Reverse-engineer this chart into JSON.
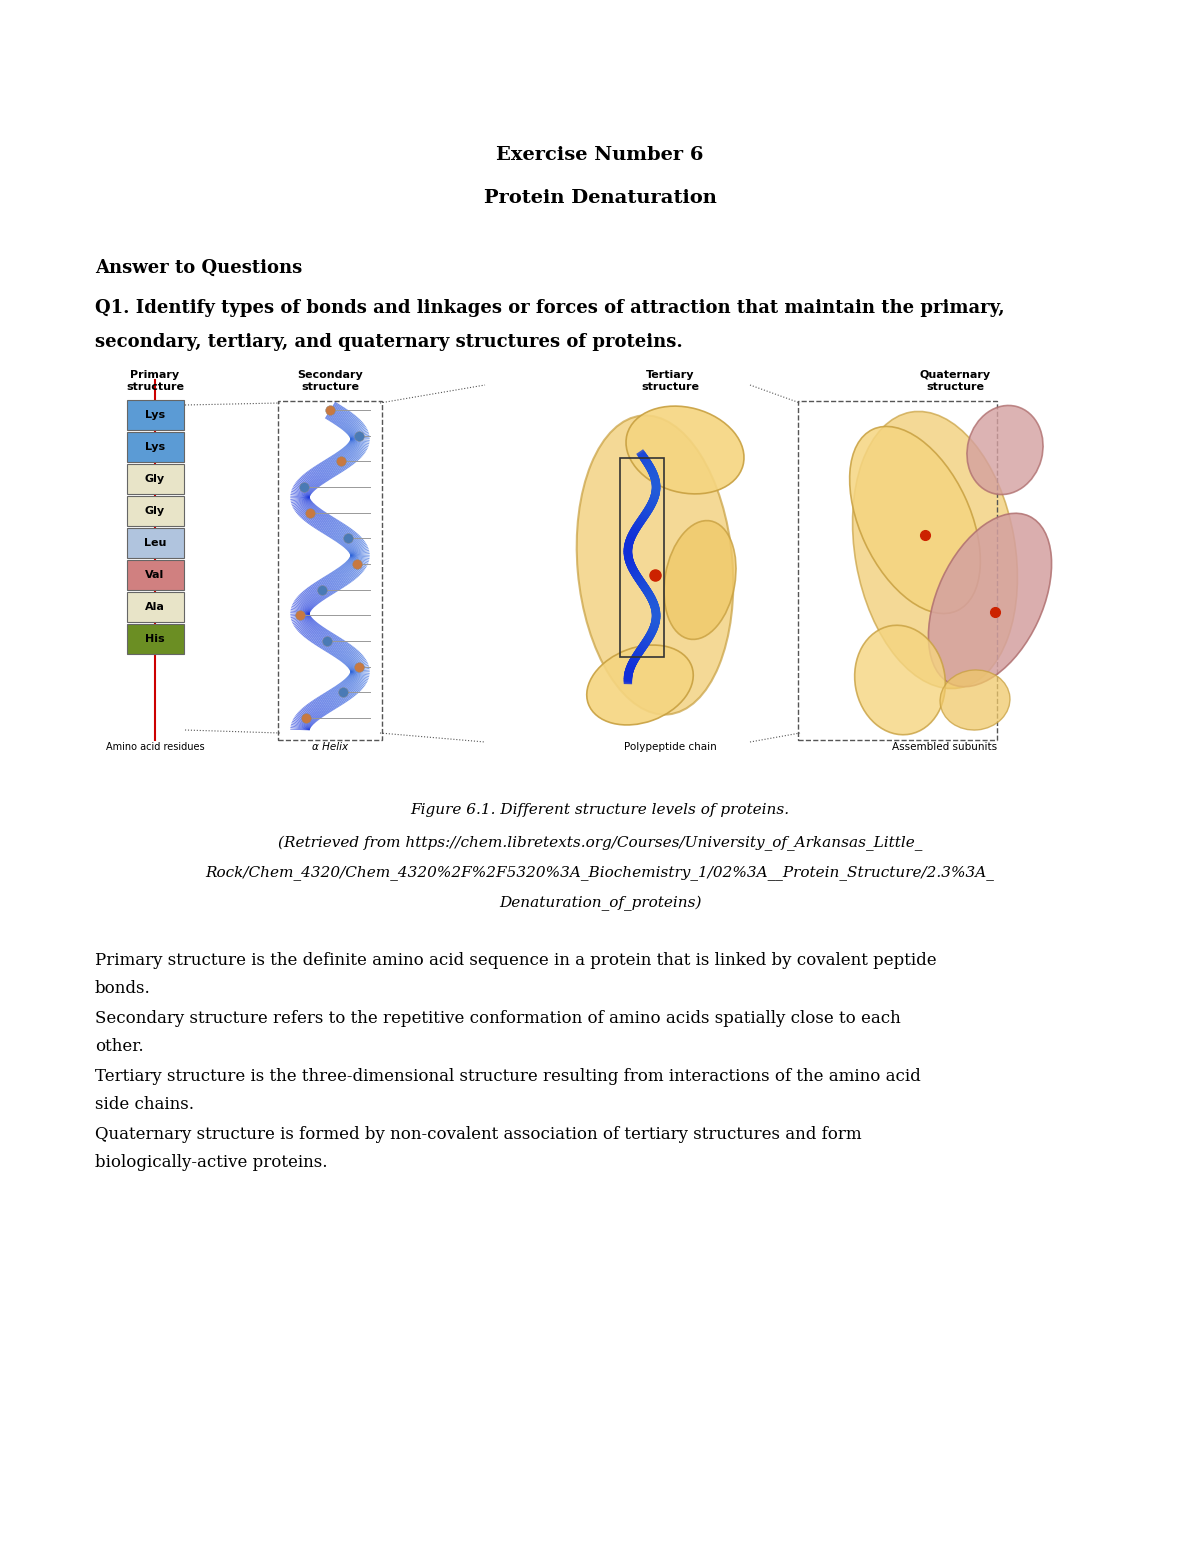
{
  "background_color": "#ffffff",
  "title_line1": "Exercise Number 6",
  "title_line2": "Protein Denaturation",
  "title_fontsize": 14,
  "section_header": "Answer to Questions",
  "section_header_fontsize": 13,
  "q1_line1": "Q1. Identify types of bonds and linkages or forces of attraction that maintain the primary,",
  "q1_line2": "secondary, tertiary, and quaternary structures of proteins.",
  "q1_fontsize": 13,
  "fig_cap1": "Figure 6.1. Different structure levels of proteins.",
  "fig_cap2": "(Retrieved from https://chem.libretexts.org/Courses/University_of_Arkansas_Little_",
  "fig_cap3": "Rock/Chem_4320/Chem_4320%2F%2F5320%3A_Biochemistry_1/02%3A__Protein_Structure/2.3%3A_",
  "fig_cap4": "Denaturation_of_proteins)",
  "caption_fontsize": 11,
  "body_fontsize": 12,
  "body_lines": [
    [
      "Primary structure is the definite amino acid sequence in a protein that is linked by covalent peptide",
      "bonds."
    ],
    [
      "Secondary structure refers to the repetitive conformation of amino acids spatially close to each",
      "other."
    ],
    [
      "Tertiary structure is the three-dimensional structure resulting from interactions of the amino acid",
      "side chains."
    ],
    [
      "Quaternary structure is formed by non-covalent association of tertiary structures and form",
      "biologically-active proteins."
    ]
  ],
  "page_width": 12.0,
  "page_height": 15.53,
  "aa_colors": [
    "#5b9bd5",
    "#5b9bd5",
    "#e8e4c8",
    "#e8e4c8",
    "#b0c4de",
    "#d08080",
    "#e8e4c8",
    "#6b8e23"
  ],
  "aa_names": [
    "Lys",
    "Lys",
    "Gly",
    "Gly",
    "Leu",
    "Val",
    "Ala",
    "His"
  ]
}
